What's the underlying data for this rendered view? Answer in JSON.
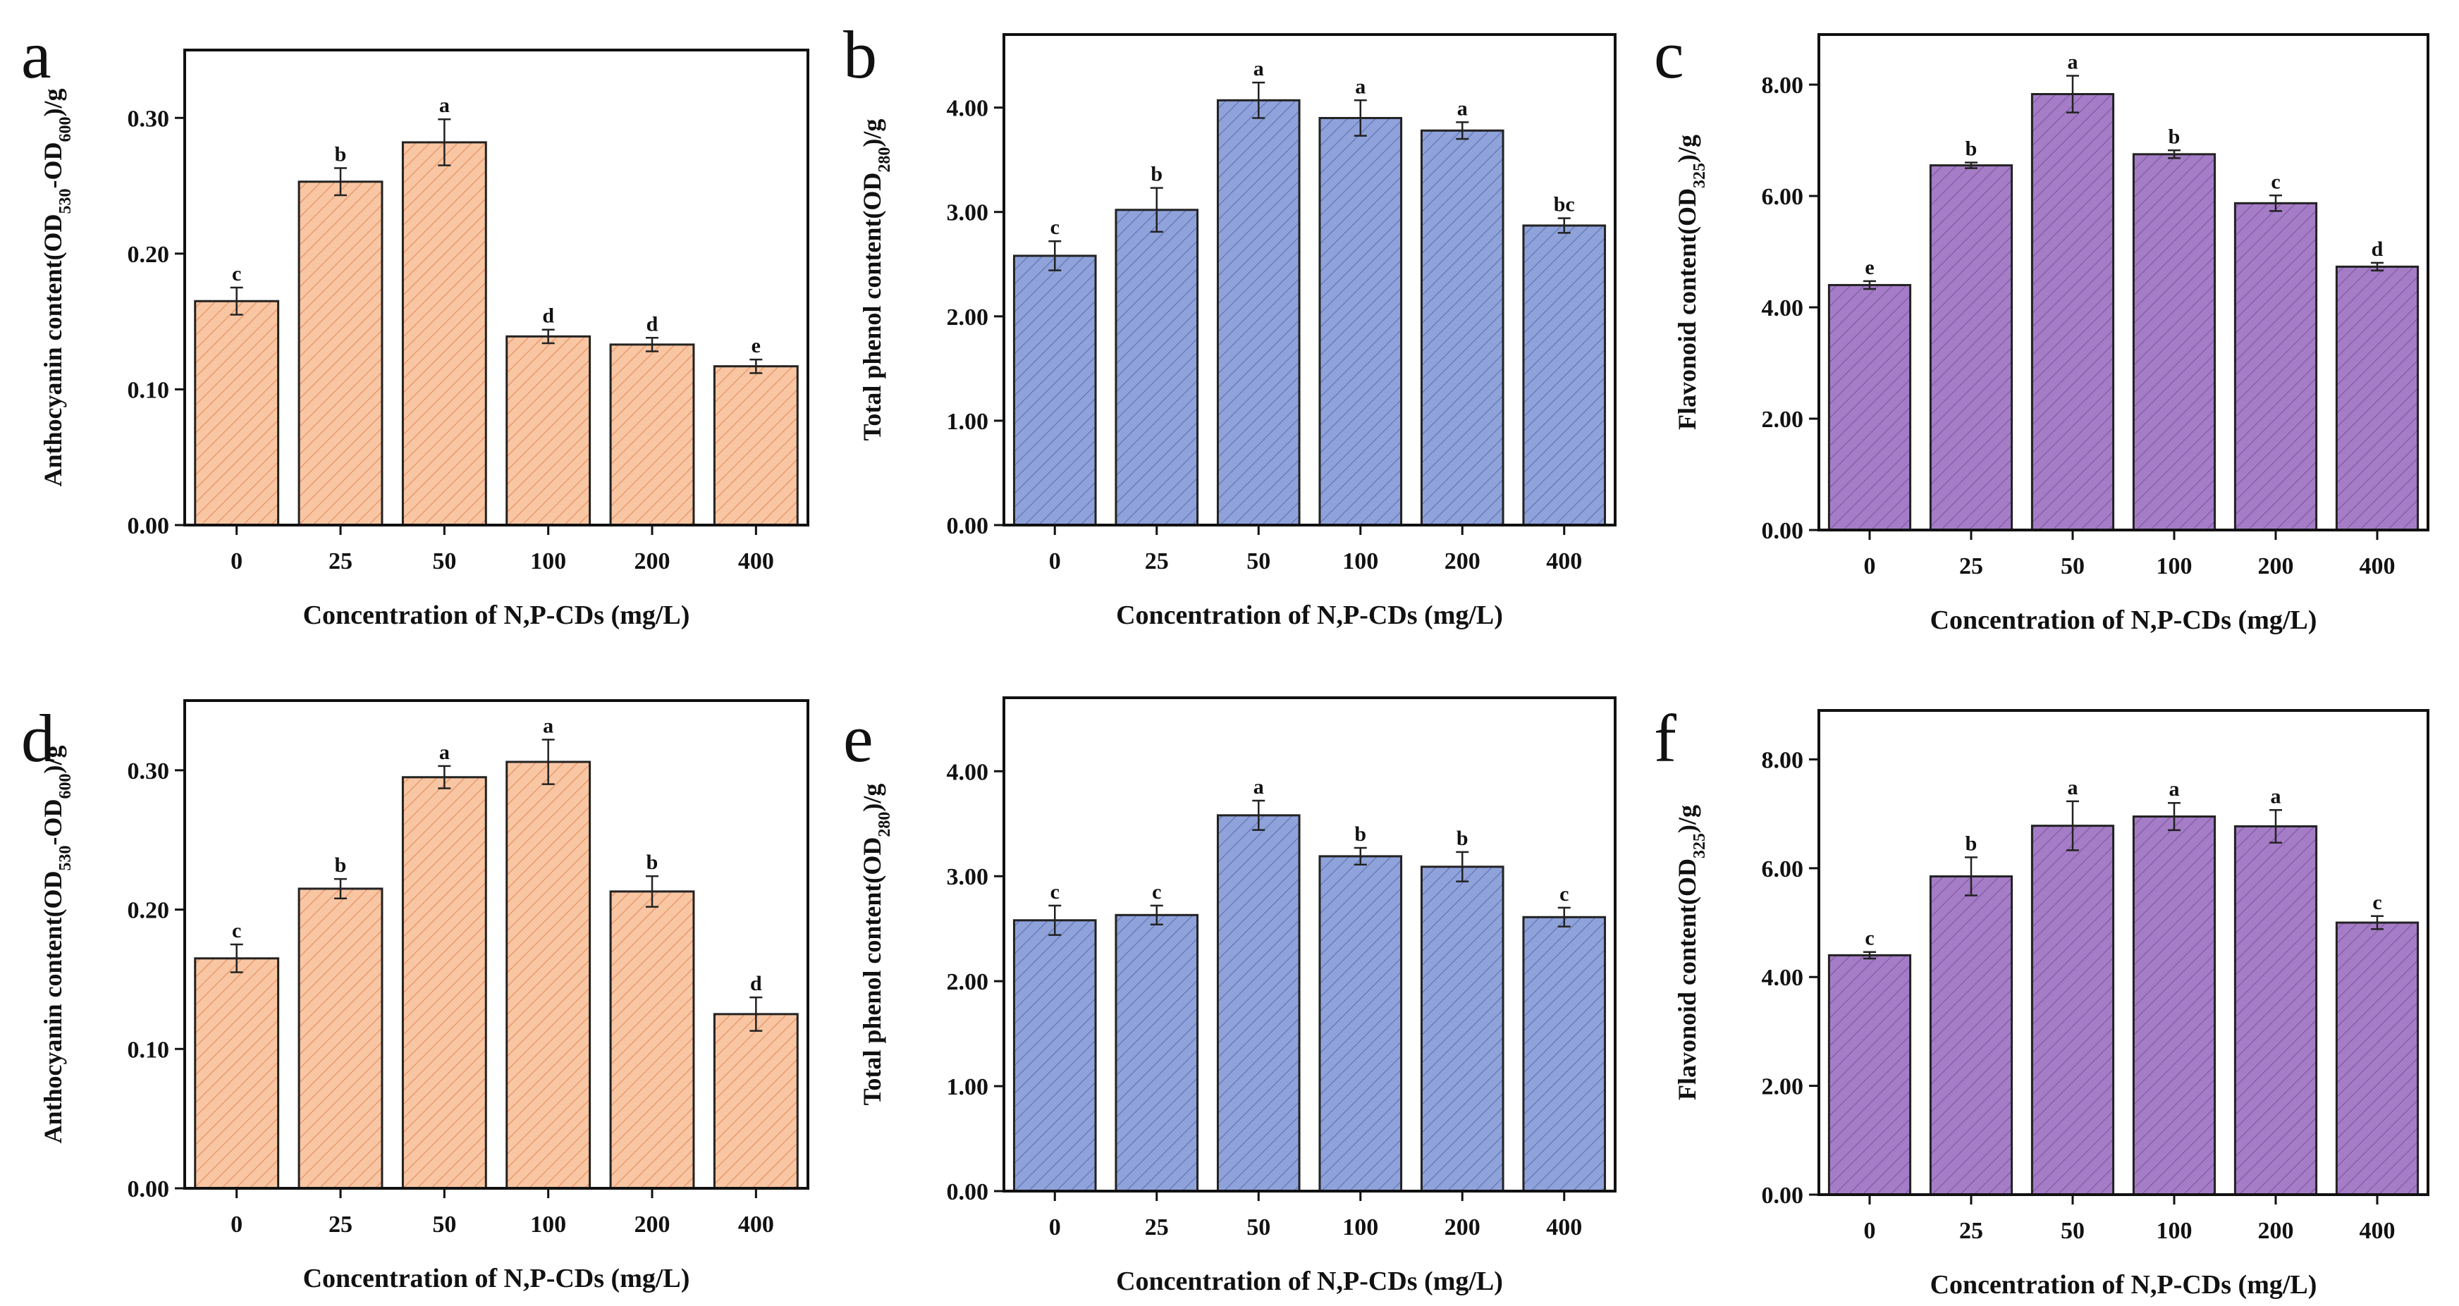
{
  "chart_data": [
    {
      "panel": "a",
      "type": "bar",
      "categories": [
        "0",
        "25",
        "50",
        "100",
        "200",
        "400"
      ],
      "values": [
        0.165,
        0.253,
        0.282,
        0.139,
        0.133,
        0.117
      ],
      "errors": [
        0.01,
        0.01,
        0.017,
        0.005,
        0.005,
        0.005
      ],
      "labels": [
        "c",
        "b",
        "a",
        "d",
        "d",
        "e"
      ],
      "ylim": [
        0,
        0.35
      ],
      "yticks": [
        "0.00",
        "0.10",
        "0.20",
        "0.30"
      ],
      "ytick_values": [
        0,
        0.1,
        0.2,
        0.3
      ],
      "xlabel": "Concentration of N,P-CDs (mg/L)",
      "ylabel": [
        {
          "t": "Anthocyanin content(OD"
        },
        {
          "t": "530",
          "sub": true
        },
        {
          "t": "-OD"
        },
        {
          "t": "600",
          "sub": true
        },
        {
          "t": ")/g"
        }
      ],
      "color": "#f9c6a3",
      "hatch": "#e48c5c"
    },
    {
      "panel": "b",
      "type": "bar",
      "categories": [
        "0",
        "25",
        "50",
        "100",
        "200",
        "400"
      ],
      "values": [
        2.58,
        3.02,
        4.07,
        3.9,
        3.78,
        2.87
      ],
      "errors": [
        0.14,
        0.21,
        0.17,
        0.17,
        0.08,
        0.07
      ],
      "labels": [
        "c",
        "b",
        "a",
        "a",
        "a",
        "bc"
      ],
      "ylim": [
        0,
        4.7
      ],
      "yticks": [
        "0.00",
        "1.00",
        "2.00",
        "3.00",
        "4.00"
      ],
      "ytick_values": [
        0,
        1,
        2,
        3,
        4
      ],
      "xlabel": "Concentration of N,P-CDs (mg/L)",
      "ylabel": [
        {
          "t": "Total phenol content(OD"
        },
        {
          "t": "280",
          "sub": true
        },
        {
          "t": ")/g"
        }
      ],
      "color": "#8fa2da",
      "hatch": "#5d72b4"
    },
    {
      "panel": "c",
      "type": "bar",
      "categories": [
        "0",
        "25",
        "50",
        "100",
        "200",
        "400"
      ],
      "values": [
        4.4,
        6.55,
        7.83,
        6.75,
        5.87,
        4.73
      ],
      "errors": [
        0.07,
        0.05,
        0.33,
        0.07,
        0.14,
        0.07
      ],
      "labels": [
        "e",
        "b",
        "a",
        "b",
        "c",
        "d"
      ],
      "ylim": [
        0,
        8.9
      ],
      "yticks": [
        "0.00",
        "2.00",
        "4.00",
        "6.00",
        "8.00"
      ],
      "ytick_values": [
        0,
        2,
        4,
        6,
        8
      ],
      "xlabel": "Concentration of N,P-CDs (mg/L)",
      "ylabel": [
        {
          "t": "Flavonoid content(OD"
        },
        {
          "t": "325",
          "sub": true
        },
        {
          "t": ")/g"
        }
      ],
      "color": "#a57dc6",
      "hatch": "#7f55a4"
    },
    {
      "panel": "d",
      "type": "bar",
      "categories": [
        "0",
        "25",
        "50",
        "100",
        "200",
        "400"
      ],
      "values": [
        0.165,
        0.215,
        0.295,
        0.306,
        0.213,
        0.125
      ],
      "errors": [
        0.01,
        0.007,
        0.008,
        0.016,
        0.011,
        0.012
      ],
      "labels": [
        "c",
        "b",
        "a",
        "a",
        "b",
        "d"
      ],
      "ylim": [
        0,
        0.35
      ],
      "yticks": [
        "0.00",
        "0.10",
        "0.20",
        "0.30"
      ],
      "ytick_values": [
        0,
        0.1,
        0.2,
        0.3
      ],
      "xlabel": "Concentration of N,P-CDs (mg/L)",
      "ylabel": [
        {
          "t": "Anthocyanin content(OD"
        },
        {
          "t": "530",
          "sub": true
        },
        {
          "t": "-OD"
        },
        {
          "t": "600",
          "sub": true
        },
        {
          "t": ")/g"
        }
      ],
      "color": "#f9c6a3",
      "hatch": "#e48c5c"
    },
    {
      "panel": "e",
      "type": "bar",
      "categories": [
        "0",
        "25",
        "50",
        "100",
        "200",
        "400"
      ],
      "values": [
        2.58,
        2.63,
        3.58,
        3.19,
        3.09,
        2.61
      ],
      "errors": [
        0.14,
        0.09,
        0.14,
        0.08,
        0.14,
        0.09
      ],
      "labels": [
        "c",
        "c",
        "a",
        "b",
        "b",
        "c"
      ],
      "ylim": [
        0,
        4.7
      ],
      "yticks": [
        "0.00",
        "1.00",
        "2.00",
        "3.00",
        "4.00"
      ],
      "ytick_values": [
        0,
        1,
        2,
        3,
        4
      ],
      "xlabel": "Concentration of N,P-CDs (mg/L)",
      "ylabel": [
        {
          "t": "Total phenol content(OD"
        },
        {
          "t": "280",
          "sub": true
        },
        {
          "t": ")/g"
        }
      ],
      "color": "#8fa2da",
      "hatch": "#5d72b4"
    },
    {
      "panel": "f",
      "type": "bar",
      "categories": [
        "0",
        "25",
        "50",
        "100",
        "200",
        "400"
      ],
      "values": [
        4.4,
        5.85,
        6.78,
        6.95,
        6.77,
        5.0
      ],
      "errors": [
        0.06,
        0.35,
        0.45,
        0.25,
        0.3,
        0.12
      ],
      "labels": [
        "c",
        "b",
        "a",
        "a",
        "a",
        "c"
      ],
      "ylim": [
        0,
        8.9
      ],
      "yticks": [
        "0.00",
        "2.00",
        "4.00",
        "6.00",
        "8.00"
      ],
      "ytick_values": [
        0,
        2,
        4,
        6,
        8
      ],
      "xlabel": "Concentration of N,P-CDs (mg/L)",
      "ylabel": [
        {
          "t": "Flavonoid content(OD"
        },
        {
          "t": "325",
          "sub": true
        },
        {
          "t": ")/g"
        }
      ],
      "color": "#a57dc6",
      "hatch": "#7f55a4"
    }
  ]
}
